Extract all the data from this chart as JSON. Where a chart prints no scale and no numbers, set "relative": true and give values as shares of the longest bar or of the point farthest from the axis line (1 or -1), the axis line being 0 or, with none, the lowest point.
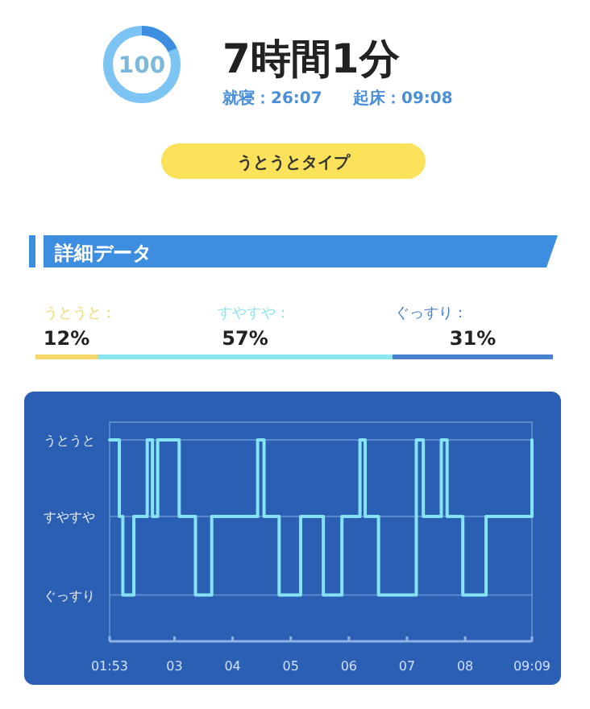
{
  "chart_data": [
    {
      "type": "other",
      "title": "7時間1分",
      "annotations": [
        "100",
        "就寝：26:07",
        "起床：09:08",
        "うとうとタイプ"
      ]
    },
    {
      "type": "bar",
      "title": "詳細データ",
      "orientation": "horizontal",
      "stacked": true,
      "categories": [
        null
      ],
      "series": [
        {
          "name": "うとうと：",
          "color": "#f5d76e",
          "values": [
            12
          ],
          "value_labels": [
            "12%"
          ]
        },
        {
          "name": "すやすや：",
          "color": "#8be6f2",
          "values": [
            57
          ],
          "value_labels": [
            "57%"
          ]
        },
        {
          "name": "ぐっすり：",
          "color": "#4a80d0",
          "values": [
            31
          ],
          "value_labels": [
            "31%"
          ]
        }
      ]
    },
    {
      "type": "step",
      "xlim": [
        1.883,
        9.15
      ],
      "xticks": [
        {
          "value": 1.883,
          "label": "01:53"
        },
        {
          "value": 3,
          "label": "03"
        },
        {
          "value": 4,
          "label": "04"
        },
        {
          "value": 5,
          "label": "05"
        },
        {
          "value": 6,
          "label": "06"
        },
        {
          "value": 7,
          "label": "07"
        },
        {
          "value": 8,
          "label": "08"
        },
        {
          "value": 9.15,
          "label": "09:09"
        }
      ],
      "relative": true,
      "ref_lines": [
        {
          "axis": "y",
          "value": 1,
          "label": "うとうと",
          "color": "#5a88cc"
        },
        {
          "axis": "y",
          "value": 0.62,
          "label": "すやすや",
          "color": "#5a88cc"
        },
        {
          "axis": "y",
          "value": 0.23,
          "label": "ぐっすり",
          "color": "#5a88cc"
        }
      ],
      "series": [
        {
          "color": "#86e3f3",
          "x": [
            1.883,
            2.05,
            2.11,
            2.3,
            2.53,
            2.62,
            2.71,
            3.08,
            3.36,
            3.64,
            4.43,
            4.54,
            4.8,
            5.17,
            5.56,
            5.88,
            6.19,
            6.28,
            6.51,
            7.16,
            7.28,
            7.59,
            7.69,
            7.96,
            8.36,
            9.15
          ],
          "values": [
            1,
            0.62,
            0.23,
            0.62,
            1,
            0.62,
            1,
            0.62,
            0.23,
            0.62,
            1,
            0.62,
            0.23,
            0.62,
            0.23,
            0.62,
            1,
            0.62,
            0.23,
            1,
            0.62,
            1,
            0.62,
            0.23,
            0.62,
            1
          ]
        }
      ]
    }
  ]
}
